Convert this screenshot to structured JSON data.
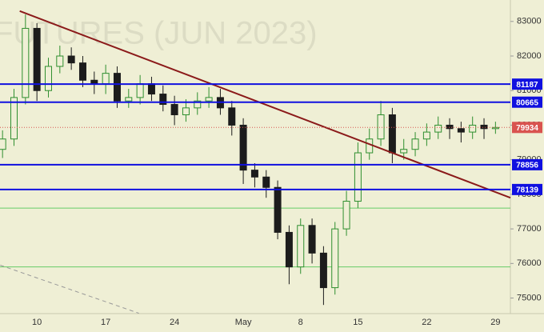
{
  "chart_data": {
    "type": "candlestick",
    "watermark": "FUTURES (JUN 2023)",
    "categories": [
      null,
      null,
      null,
      "10",
      null,
      null,
      null,
      null,
      null,
      "17",
      null,
      null,
      null,
      null,
      null,
      "24",
      null,
      null,
      null,
      null,
      null,
      "May",
      null,
      null,
      null,
      null,
      "8",
      null,
      null,
      null,
      null,
      "15",
      null,
      null,
      null,
      null,
      null,
      "22",
      null,
      null,
      null,
      null,
      null,
      "29"
    ],
    "open": [
      79300,
      79600,
      80800,
      82800,
      81000,
      81700,
      82000,
      81800,
      81300,
      81200,
      81500,
      80700,
      80800,
      81200,
      80900,
      80600,
      80300,
      80500,
      80700,
      80800,
      80500,
      80000,
      78700,
      78500,
      78200,
      76900,
      75900,
      77100,
      76300,
      75300,
      77000,
      77800,
      79200,
      79600,
      80300,
      79200,
      79300,
      79600,
      79800,
      80000,
      79900,
      79800,
      80000,
      79900
    ],
    "high": [
      79850,
      81050,
      83200,
      82950,
      81950,
      82300,
      82250,
      82000,
      81550,
      81750,
      81700,
      81050,
      81450,
      81400,
      81150,
      80850,
      80750,
      80950,
      81100,
      81050,
      80700,
      80200,
      78900,
      78700,
      78400,
      77100,
      77300,
      77300,
      76500,
      77200,
      78100,
      79500,
      79900,
      80700,
      80500,
      79600,
      79800,
      80050,
      80250,
      80200,
      80100,
      80250,
      80200,
      80100
    ],
    "low": [
      79050,
      79400,
      80600,
      80700,
      80800,
      81500,
      81600,
      81100,
      80900,
      80900,
      80500,
      80500,
      80600,
      80700,
      80400,
      80000,
      80100,
      80300,
      80500,
      80300,
      79700,
      78300,
      78200,
      77900,
      76700,
      75400,
      75700,
      76000,
      74800,
      75100,
      76800,
      77600,
      79000,
      79400,
      78900,
      79000,
      79100,
      79400,
      79600,
      79600,
      79500,
      79600,
      79600,
      79750
    ],
    "close": [
      79600,
      80800,
      82800,
      81000,
      81700,
      82000,
      81800,
      81300,
      81200,
      81500,
      80700,
      80800,
      81200,
      80900,
      80600,
      80300,
      80500,
      80700,
      80800,
      80500,
      80000,
      78700,
      78500,
      78200,
      76900,
      75900,
      77100,
      76300,
      75300,
      77000,
      77800,
      79200,
      79600,
      80300,
      79200,
      79300,
      79600,
      79800,
      80000,
      79900,
      79800,
      80000,
      79900,
      79934
    ],
    "up_color": "#2f8f2f",
    "down_color": "#1c1c1c",
    "ylim": [
      74550,
      83620
    ],
    "yticks": [
      75000,
      76000,
      77000,
      78000,
      79000,
      80000,
      81000,
      82000,
      83000
    ],
    "levels": [
      81187,
      80665,
      78856,
      78139
    ],
    "level_color": "#1010e0",
    "support_lines": [
      77600,
      75900
    ],
    "support_color": "#66cc66",
    "last_price": 79934,
    "last_color": "#d9534f",
    "trendline": {
      "start": [
        1.5,
        83300
      ],
      "end": [
        44.3,
        77900
      ],
      "color": "#8b1a1a"
    },
    "dashed_line": {
      "start": [
        -0.2,
        75950
      ],
      "end": [
        11.9,
        74560
      ],
      "color": "#999999"
    }
  }
}
